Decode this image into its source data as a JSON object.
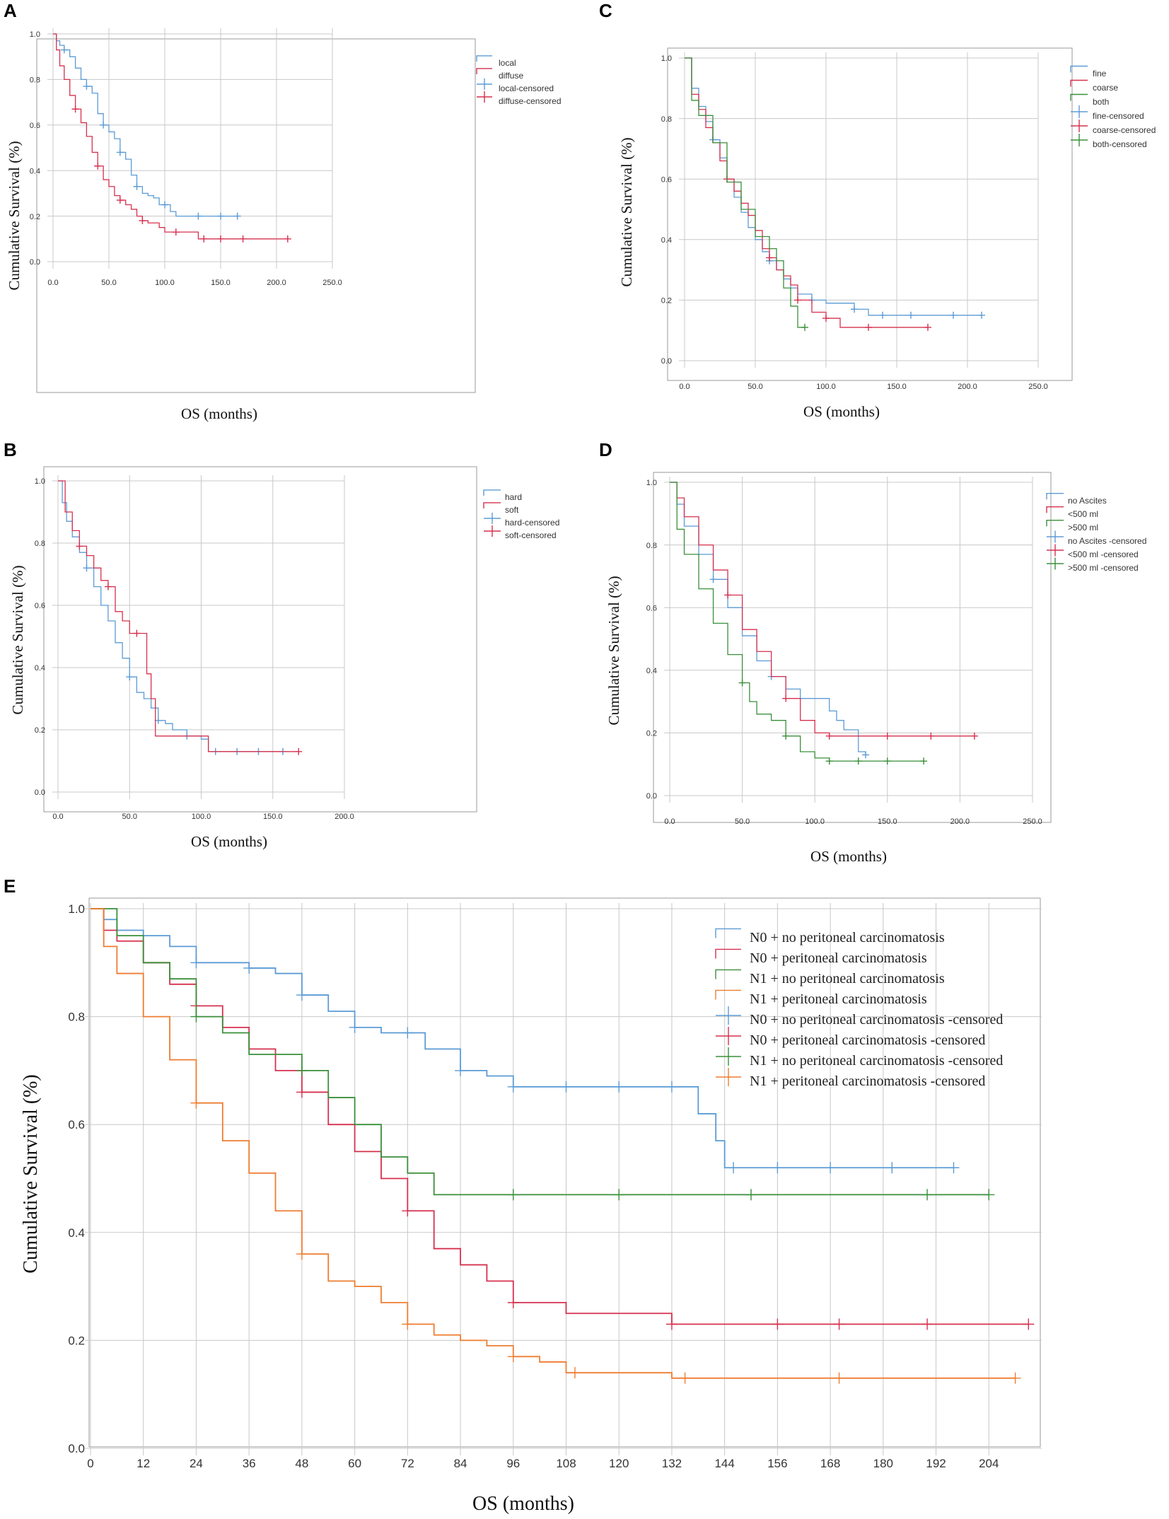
{
  "figure": {
    "panels": [
      {
        "letter": "A",
        "xlabel": "OS (months)",
        "ylabel": "Cumulative Survival (%)",
        "xticks": [
          "0.0",
          "50.0",
          "100.0",
          "150.0",
          "200.0",
          "250.0"
        ],
        "yticks": [
          "0.0",
          "0.2",
          "0.4",
          "0.6",
          "0.8",
          "1.0"
        ],
        "legend": [
          "local",
          "diffuse",
          "local-censored",
          "diffuse-censored"
        ]
      },
      {
        "letter": "C",
        "xlabel": "OS (months)",
        "ylabel": "Cumulative Survival (%)",
        "xticks": [
          "0.0",
          "50.0",
          "100.0",
          "150.0",
          "200.0",
          "250.0"
        ],
        "yticks": [
          "0.0",
          "0.2",
          "0.4",
          "0.6",
          "0.8",
          "1.0"
        ],
        "legend": [
          "fine",
          "coarse",
          "both",
          "fine-censored",
          "coarse-censored",
          "both-censored"
        ]
      },
      {
        "letter": "B",
        "xlabel": "OS (months)",
        "ylabel": "Cumulative Survival (%)",
        "xticks": [
          "0.0",
          "50.0",
          "100.0",
          "150.0",
          "200.0"
        ],
        "yticks": [
          "0.0",
          "0.2",
          "0.4",
          "0.6",
          "0.8",
          "1.0"
        ],
        "legend": [
          "hard",
          "soft",
          "hard-censored",
          "soft-censored"
        ]
      },
      {
        "letter": "D",
        "xlabel": "OS (months)",
        "ylabel": "Cumulative Survival (%)",
        "xticks": [
          "0.0",
          "50.0",
          "100.0",
          "150.0",
          "200.0",
          "250.0"
        ],
        "yticks": [
          "0.0",
          "0.2",
          "0.4",
          "0.6",
          "0.8",
          "1.0"
        ],
        "legend": [
          "no Ascites",
          "<500 ml",
          ">500 ml",
          "no Ascites -censored",
          "<500 ml -censored",
          ">500 ml -censored"
        ]
      },
      {
        "letter": "E",
        "xlabel": "OS (months)",
        "ylabel": "Cumulative Survival (%)",
        "xticks": [
          "0",
          "12",
          "24",
          "36",
          "48",
          "60",
          "72",
          "84",
          "96",
          "108",
          "120",
          "132",
          "144",
          "156",
          "168",
          "180",
          "192",
          "204"
        ],
        "yticks": [
          "0.0",
          "0.2",
          "0.4",
          "0.6",
          "0.8",
          "1.0"
        ],
        "legend": [
          "N0 + no peritoneal carcinomatosis",
          "N0 + peritoneal carcinomatosis",
          "N1 + no peritoneal carcinomatosis",
          "N1 + peritoneal carcinomatosis",
          "N0 + no peritoneal carcinomatosis -censored",
          "N0 + peritoneal carcinomatosis -censored",
          "N1 + no peritoneal carcinomatosis -censored",
          "N1 + peritoneal carcinomatosis -censored"
        ]
      }
    ]
  },
  "colors": {
    "blue": "#5b9bd5",
    "red": "#d6304e",
    "green": "#3a8f3a",
    "orange": "#ee7d31"
  },
  "chart_data": [
    {
      "panel": "A",
      "type": "line",
      "xlim": [
        0,
        250
      ],
      "ylim": [
        0,
        1
      ],
      "series": [
        {
          "name": "local",
          "color": "blue",
          "x": [
            0,
            3,
            6,
            10,
            15,
            20,
            25,
            30,
            35,
            40,
            45,
            50,
            55,
            60,
            65,
            70,
            75,
            80,
            85,
            90,
            95,
            100,
            105,
            110,
            120,
            130,
            140,
            150,
            165
          ],
          "y": [
            1.0,
            0.97,
            0.95,
            0.93,
            0.9,
            0.85,
            0.8,
            0.77,
            0.74,
            0.65,
            0.6,
            0.57,
            0.54,
            0.48,
            0.45,
            0.38,
            0.33,
            0.3,
            0.29,
            0.28,
            0.25,
            0.25,
            0.22,
            0.2,
            0.2,
            0.2,
            0.2,
            0.2,
            0.2
          ],
          "censored": [
            10,
            30,
            45,
            60,
            75,
            100,
            130,
            150,
            165
          ]
        },
        {
          "name": "diffuse",
          "color": "red",
          "x": [
            0,
            3,
            6,
            10,
            15,
            20,
            25,
            30,
            35,
            40,
            45,
            50,
            55,
            60,
            65,
            70,
            75,
            80,
            85,
            90,
            95,
            100,
            110,
            120,
            130,
            140,
            150,
            170,
            210
          ],
          "y": [
            1.0,
            0.93,
            0.86,
            0.8,
            0.73,
            0.67,
            0.61,
            0.55,
            0.48,
            0.42,
            0.36,
            0.33,
            0.29,
            0.27,
            0.25,
            0.23,
            0.2,
            0.18,
            0.17,
            0.17,
            0.15,
            0.13,
            0.13,
            0.13,
            0.1,
            0.1,
            0.1,
            0.1,
            0.1
          ],
          "censored": [
            20,
            40,
            60,
            80,
            110,
            135,
            150,
            170,
            210
          ]
        }
      ]
    },
    {
      "panel": "C",
      "type": "line",
      "xlim": [
        0,
        250
      ],
      "ylim": [
        0,
        1
      ],
      "series": [
        {
          "name": "fine",
          "color": "blue",
          "x": [
            0,
            5,
            10,
            15,
            20,
            25,
            30,
            35,
            40,
            45,
            50,
            55,
            60,
            65,
            70,
            75,
            80,
            90,
            100,
            110,
            120,
            130,
            140,
            150,
            170,
            190,
            210
          ],
          "y": [
            1.0,
            0.9,
            0.84,
            0.79,
            0.73,
            0.67,
            0.6,
            0.54,
            0.49,
            0.44,
            0.4,
            0.36,
            0.33,
            0.3,
            0.27,
            0.24,
            0.22,
            0.2,
            0.19,
            0.19,
            0.17,
            0.15,
            0.15,
            0.15,
            0.15,
            0.15,
            0.15
          ],
          "censored": [
            20,
            60,
            90,
            120,
            140,
            160,
            190,
            210
          ]
        },
        {
          "name": "coarse",
          "color": "red",
          "x": [
            0,
            5,
            10,
            15,
            20,
            25,
            30,
            35,
            40,
            45,
            50,
            55,
            60,
            65,
            70,
            75,
            80,
            90,
            100,
            110,
            130,
            150,
            172
          ],
          "y": [
            1.0,
            0.88,
            0.83,
            0.77,
            0.72,
            0.66,
            0.6,
            0.56,
            0.52,
            0.48,
            0.43,
            0.37,
            0.34,
            0.3,
            0.28,
            0.25,
            0.2,
            0.16,
            0.14,
            0.11,
            0.11,
            0.11,
            0.11
          ],
          "censored": [
            30,
            60,
            80,
            100,
            130,
            172
          ]
        },
        {
          "name": "both",
          "color": "green",
          "x": [
            0,
            5,
            10,
            20,
            30,
            40,
            50,
            60,
            65,
            70,
            75,
            80,
            85
          ],
          "y": [
            1.0,
            0.86,
            0.81,
            0.72,
            0.59,
            0.5,
            0.41,
            0.37,
            0.33,
            0.24,
            0.18,
            0.11,
            0.11
          ],
          "censored": [
            85
          ]
        }
      ]
    },
    {
      "panel": "B",
      "type": "line",
      "xlim": [
        0,
        200
      ],
      "ylim": [
        0,
        1
      ],
      "series": [
        {
          "name": "hard",
          "color": "blue",
          "x": [
            0,
            3,
            6,
            10,
            15,
            20,
            25,
            30,
            35,
            40,
            45,
            50,
            55,
            60,
            65,
            70,
            75,
            80,
            90,
            100,
            105,
            110,
            120,
            130,
            140,
            150,
            157
          ],
          "y": [
            1.0,
            0.93,
            0.87,
            0.82,
            0.77,
            0.72,
            0.66,
            0.6,
            0.55,
            0.48,
            0.43,
            0.37,
            0.32,
            0.3,
            0.27,
            0.23,
            0.22,
            0.2,
            0.18,
            0.17,
            0.13,
            0.13,
            0.13,
            0.13,
            0.13,
            0.13,
            0.13
          ],
          "censored": [
            20,
            50,
            70,
            90,
            110,
            125,
            140,
            157
          ]
        },
        {
          "name": "soft",
          "color": "red",
          "x": [
            0,
            5,
            10,
            15,
            20,
            25,
            30,
            35,
            40,
            45,
            50,
            55,
            60,
            62,
            65,
            68,
            80,
            105,
            120,
            150,
            168
          ],
          "y": [
            1.0,
            0.9,
            0.84,
            0.79,
            0.76,
            0.72,
            0.68,
            0.66,
            0.58,
            0.55,
            0.51,
            0.51,
            0.51,
            0.38,
            0.3,
            0.18,
            0.18,
            0.13,
            0.13,
            0.13,
            0.13
          ],
          "censored": [
            15,
            35,
            55,
            168
          ]
        }
      ]
    },
    {
      "panel": "D",
      "type": "line",
      "xlim": [
        0,
        250
      ],
      "ylim": [
        0,
        1
      ],
      "series": [
        {
          "name": "no Ascites",
          "color": "blue",
          "x": [
            0,
            5,
            10,
            20,
            30,
            40,
            50,
            60,
            70,
            80,
            90,
            100,
            110,
            115,
            120,
            130,
            135
          ],
          "y": [
            1.0,
            0.93,
            0.86,
            0.77,
            0.69,
            0.6,
            0.51,
            0.43,
            0.38,
            0.34,
            0.31,
            0.31,
            0.27,
            0.24,
            0.21,
            0.14,
            0.13
          ],
          "censored": [
            30,
            70,
            135
          ]
        },
        {
          "name": "<500 ml",
          "color": "red",
          "x": [
            0,
            5,
            10,
            20,
            30,
            40,
            50,
            60,
            70,
            80,
            90,
            100,
            110,
            120,
            150,
            180,
            210
          ],
          "y": [
            1.0,
            0.95,
            0.89,
            0.8,
            0.72,
            0.64,
            0.53,
            0.46,
            0.38,
            0.31,
            0.24,
            0.2,
            0.19,
            0.19,
            0.19,
            0.19,
            0.19
          ],
          "censored": [
            40,
            80,
            110,
            150,
            180,
            210
          ]
        },
        {
          "name": ">500 ml",
          "color": "green",
          "x": [
            0,
            5,
            10,
            20,
            30,
            40,
            50,
            55,
            60,
            70,
            80,
            90,
            100,
            110,
            130,
            150,
            175
          ],
          "y": [
            1.0,
            0.85,
            0.77,
            0.66,
            0.55,
            0.45,
            0.36,
            0.3,
            0.26,
            0.24,
            0.19,
            0.14,
            0.12,
            0.11,
            0.11,
            0.11,
            0.11
          ],
          "censored": [
            50,
            80,
            110,
            130,
            150,
            175
          ]
        }
      ]
    },
    {
      "panel": "E",
      "type": "line",
      "xlim": [
        0,
        216
      ],
      "ylim": [
        0,
        1
      ],
      "series": [
        {
          "name": "N0 + no peritoneal carcinomatosis",
          "color": "blue",
          "x": [
            0,
            3,
            6,
            12,
            18,
            24,
            30,
            36,
            42,
            48,
            54,
            60,
            66,
            72,
            76,
            84,
            90,
            96,
            108,
            120,
            132,
            138,
            142,
            144,
            150,
            168,
            180,
            196
          ],
          "y": [
            1.0,
            0.98,
            0.96,
            0.95,
            0.93,
            0.9,
            0.9,
            0.89,
            0.88,
            0.84,
            0.81,
            0.78,
            0.77,
            0.77,
            0.74,
            0.7,
            0.69,
            0.67,
            0.67,
            0.67,
            0.67,
            0.62,
            0.57,
            0.52,
            0.52,
            0.52,
            0.52,
            0.52
          ],
          "censored": [
            12,
            24,
            36,
            48,
            60,
            72,
            84,
            96,
            108,
            120,
            132,
            146,
            156,
            168,
            182,
            196
          ]
        },
        {
          "name": "N0 + peritoneal carcinomatosis",
          "color": "red",
          "x": [
            0,
            3,
            6,
            12,
            18,
            24,
            30,
            36,
            42,
            48,
            54,
            60,
            66,
            72,
            78,
            84,
            90,
            96,
            108,
            120,
            132,
            150,
            170,
            190,
            213
          ],
          "y": [
            1.0,
            0.96,
            0.94,
            0.9,
            0.86,
            0.82,
            0.78,
            0.74,
            0.7,
            0.66,
            0.6,
            0.55,
            0.5,
            0.44,
            0.37,
            0.34,
            0.31,
            0.27,
            0.25,
            0.25,
            0.23,
            0.23,
            0.23,
            0.23,
            0.23
          ],
          "censored": [
            24,
            48,
            72,
            96,
            132,
            156,
            170,
            190,
            213
          ]
        },
        {
          "name": "N1 + no peritoneal carcinomatosis",
          "color": "green",
          "x": [
            0,
            6,
            12,
            18,
            24,
            30,
            36,
            42,
            48,
            54,
            60,
            66,
            72,
            78,
            90,
            120,
            150,
            180,
            204
          ],
          "y": [
            1.0,
            0.95,
            0.9,
            0.87,
            0.8,
            0.77,
            0.73,
            0.73,
            0.7,
            0.65,
            0.6,
            0.54,
            0.51,
            0.47,
            0.47,
            0.47,
            0.47,
            0.47,
            0.47
          ],
          "censored": [
            24,
            48,
            96,
            120,
            150,
            190,
            204
          ]
        },
        {
          "name": "N1 + peritoneal carcinomatosis",
          "color": "orange",
          "x": [
            0,
            3,
            6,
            12,
            18,
            24,
            30,
            36,
            42,
            48,
            54,
            60,
            66,
            72,
            78,
            84,
            90,
            96,
            102,
            108,
            120,
            132,
            150,
            170,
            190,
            210
          ],
          "y": [
            1.0,
            0.93,
            0.88,
            0.8,
            0.72,
            0.64,
            0.57,
            0.51,
            0.44,
            0.36,
            0.31,
            0.3,
            0.27,
            0.23,
            0.21,
            0.2,
            0.19,
            0.17,
            0.16,
            0.14,
            0.14,
            0.13,
            0.13,
            0.13,
            0.13,
            0.13
          ],
          "censored": [
            24,
            48,
            72,
            96,
            110,
            135,
            170,
            210
          ]
        }
      ]
    }
  ]
}
